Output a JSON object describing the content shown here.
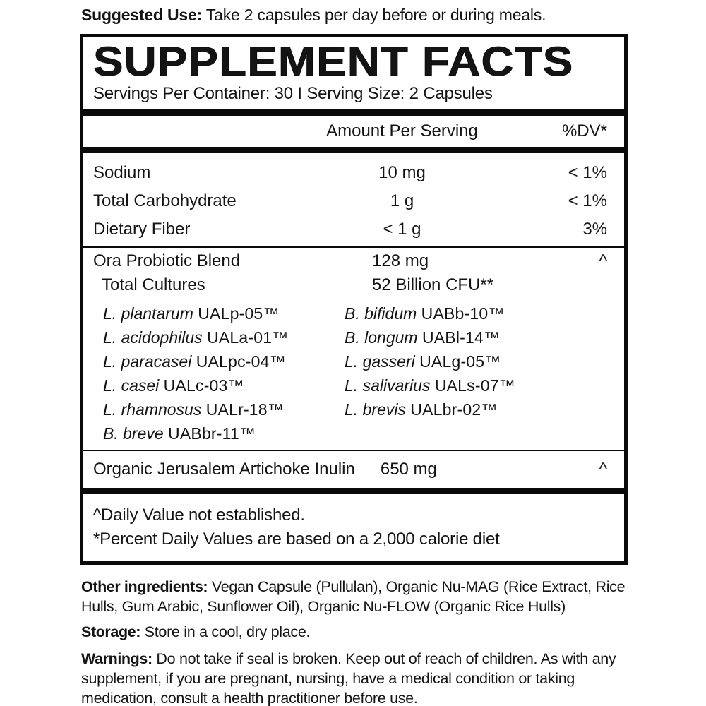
{
  "colors": {
    "background": "#ffffff",
    "text": "#141414",
    "panel_border": "#0a0a0a"
  },
  "suggested_use": {
    "label": "Suggested Use:",
    "text": "Take 2 capsules per day before or during meals."
  },
  "panel": {
    "title": "SUPPLEMENT FACTS",
    "servings_line": "Servings Per Container: 30 I Serving Size: 2 Capsules",
    "columns": {
      "amount": "Amount Per Serving",
      "dv": "%DV*"
    },
    "nutrients": [
      {
        "name": "Sodium",
        "amount": "10 mg",
        "dv": "< 1%"
      },
      {
        "name": "Total Carbohydrate",
        "amount": "1 g",
        "dv": "< 1%"
      },
      {
        "name": "Dietary Fiber",
        "amount": "< 1 g",
        "dv": "3%"
      }
    ],
    "blend": {
      "name": "Ora Probiotic Blend",
      "amount": "128 mg",
      "dv": "^",
      "sub_name": "Total Cultures",
      "sub_amount": "52 Billion CFU**",
      "strains_left": [
        {
          "species": "L. plantarum",
          "code": "UALp-05™"
        },
        {
          "species": "L. acidophilus",
          "code": "UALa-01™"
        },
        {
          "species": "L. paracasei",
          "code": "UALpc-04™"
        },
        {
          "species": "L. casei",
          "code": "UALc-03™"
        },
        {
          "species": "L. rhamnosus",
          "code": "UALr-18™"
        },
        {
          "species": "B. breve",
          "code": "UABbr-11™"
        }
      ],
      "strains_right": [
        {
          "species": "B. bifidum",
          "code": "UABb-10™"
        },
        {
          "species": "B. longum",
          "code": "UABl-14™"
        },
        {
          "species": "L. gasseri",
          "code": "UALg-05™"
        },
        {
          "species": "L. salivarius",
          "code": "UALs-07™"
        },
        {
          "species": "L. brevis",
          "code": "UALbr-02™"
        }
      ]
    },
    "inulin": {
      "name": "Organic Jerusalem Artichoke Inulin",
      "amount": "650 mg",
      "dv": "^"
    },
    "footnotes": [
      "^Daily Value not established.",
      "*Percent Daily Values are based on a 2,000 calorie diet"
    ]
  },
  "other_ingredients": {
    "label": "Other ingredients:",
    "text": "Vegan Capsule (Pullulan), Organic Nu-MAG (Rice Extract, Rice Hulls, Gum Arabic, Sunflower Oil), Organic Nu-FLOW (Organic Rice Hulls)"
  },
  "storage": {
    "label": "Storage:",
    "text": "Store in a cool, dry place."
  },
  "warnings": {
    "label": "Warnings:",
    "text": "Do not take if seal is broken. Keep out of reach of children. As with any supplement, if you are pregnant, nursing, have a medical condition or taking medication, consult a health practitioner before use."
  }
}
